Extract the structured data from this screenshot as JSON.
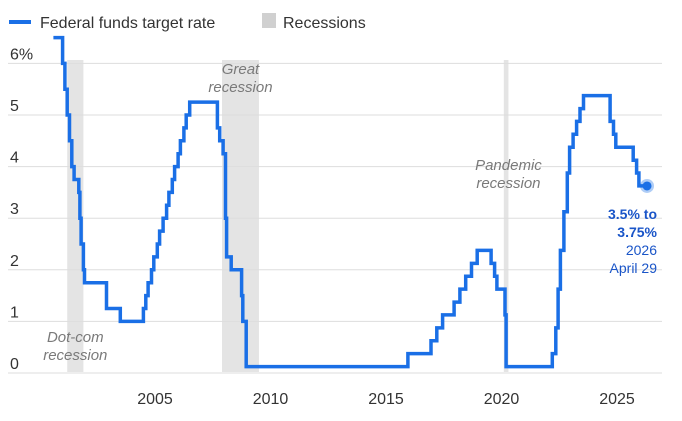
{
  "legend": {
    "series_label": "Federal funds target rate",
    "recession_label": "Recessions"
  },
  "colors": {
    "line": "#1a6fe6",
    "recession": "#e4e4e4",
    "grid": "#dddddd",
    "endpoint": "#1a55c8"
  },
  "chart_data": {
    "type": "line",
    "x_ticks": [
      "2005",
      "2010",
      "2015",
      "2020",
      "2025"
    ],
    "y_ticks": [
      "6%",
      "5",
      "4",
      "3",
      "2",
      "1",
      "0"
    ],
    "xlim": [
      2000.0,
      2026.9
    ],
    "ylim": [
      -0.1,
      6.5
    ],
    "grid": "horizontal",
    "legend_position": "top-left",
    "recessions": [
      {
        "label": "Dot-com\nrecession",
        "start": 2001.2,
        "end": 2001.9
      },
      {
        "label": "Great\nrecession",
        "start": 2007.9,
        "end": 2009.5
      },
      {
        "label": "Pandemic\nrecession",
        "start": 2020.1,
        "end": 2020.3
      }
    ],
    "series": [
      {
        "name": "Federal funds target rate",
        "points": [
          [
            2000.6,
            6.5
          ],
          [
            2001.0,
            6.5
          ],
          [
            2001.0,
            6.0
          ],
          [
            2001.1,
            6.0
          ],
          [
            2001.1,
            5.5
          ],
          [
            2001.2,
            5.5
          ],
          [
            2001.2,
            5.0
          ],
          [
            2001.3,
            5.0
          ],
          [
            2001.3,
            4.5
          ],
          [
            2001.4,
            4.5
          ],
          [
            2001.4,
            4.0
          ],
          [
            2001.5,
            4.0
          ],
          [
            2001.5,
            3.75
          ],
          [
            2001.7,
            3.75
          ],
          [
            2001.7,
            3.5
          ],
          [
            2001.75,
            3.5
          ],
          [
            2001.75,
            3.0
          ],
          [
            2001.8,
            3.0
          ],
          [
            2001.8,
            2.5
          ],
          [
            2001.9,
            2.5
          ],
          [
            2001.9,
            2.0
          ],
          [
            2001.95,
            2.0
          ],
          [
            2001.95,
            1.75
          ],
          [
            2002.9,
            1.75
          ],
          [
            2002.9,
            1.25
          ],
          [
            2003.5,
            1.25
          ],
          [
            2003.5,
            1.0
          ],
          [
            2004.5,
            1.0
          ],
          [
            2004.5,
            1.25
          ],
          [
            2004.6,
            1.25
          ],
          [
            2004.6,
            1.5
          ],
          [
            2004.7,
            1.5
          ],
          [
            2004.7,
            1.75
          ],
          [
            2004.85,
            1.75
          ],
          [
            2004.85,
            2.0
          ],
          [
            2004.95,
            2.0
          ],
          [
            2004.95,
            2.25
          ],
          [
            2005.1,
            2.25
          ],
          [
            2005.1,
            2.5
          ],
          [
            2005.2,
            2.5
          ],
          [
            2005.2,
            2.75
          ],
          [
            2005.35,
            2.75
          ],
          [
            2005.35,
            3.0
          ],
          [
            2005.5,
            3.0
          ],
          [
            2005.5,
            3.25
          ],
          [
            2005.6,
            3.25
          ],
          [
            2005.6,
            3.5
          ],
          [
            2005.75,
            3.5
          ],
          [
            2005.75,
            3.75
          ],
          [
            2005.85,
            3.75
          ],
          [
            2005.85,
            4.0
          ],
          [
            2006.0,
            4.0
          ],
          [
            2006.0,
            4.25
          ],
          [
            2006.1,
            4.25
          ],
          [
            2006.1,
            4.5
          ],
          [
            2006.25,
            4.5
          ],
          [
            2006.25,
            4.75
          ],
          [
            2006.35,
            4.75
          ],
          [
            2006.35,
            5.0
          ],
          [
            2006.5,
            5.0
          ],
          [
            2006.5,
            5.25
          ],
          [
            2007.7,
            5.25
          ],
          [
            2007.7,
            4.75
          ],
          [
            2007.8,
            4.75
          ],
          [
            2007.8,
            4.5
          ],
          [
            2007.95,
            4.5
          ],
          [
            2007.95,
            4.25
          ],
          [
            2008.05,
            4.25
          ],
          [
            2008.05,
            3.0
          ],
          [
            2008.1,
            3.0
          ],
          [
            2008.1,
            2.25
          ],
          [
            2008.3,
            2.25
          ],
          [
            2008.3,
            2.0
          ],
          [
            2008.75,
            2.0
          ],
          [
            2008.75,
            1.5
          ],
          [
            2008.8,
            1.5
          ],
          [
            2008.8,
            1.0
          ],
          [
            2008.95,
            1.0
          ],
          [
            2008.95,
            0.125
          ],
          [
            2015.95,
            0.125
          ],
          [
            2015.95,
            0.375
          ],
          [
            2016.95,
            0.375
          ],
          [
            2016.95,
            0.625
          ],
          [
            2017.2,
            0.625
          ],
          [
            2017.2,
            0.875
          ],
          [
            2017.45,
            0.875
          ],
          [
            2017.45,
            1.125
          ],
          [
            2017.95,
            1.125
          ],
          [
            2017.95,
            1.375
          ],
          [
            2018.2,
            1.375
          ],
          [
            2018.2,
            1.625
          ],
          [
            2018.45,
            1.625
          ],
          [
            2018.45,
            1.875
          ],
          [
            2018.7,
            1.875
          ],
          [
            2018.7,
            2.125
          ],
          [
            2018.95,
            2.125
          ],
          [
            2018.95,
            2.375
          ],
          [
            2019.55,
            2.375
          ],
          [
            2019.55,
            2.125
          ],
          [
            2019.7,
            2.125
          ],
          [
            2019.7,
            1.875
          ],
          [
            2019.8,
            1.875
          ],
          [
            2019.8,
            1.625
          ],
          [
            2020.15,
            1.625
          ],
          [
            2020.15,
            1.125
          ],
          [
            2020.2,
            1.125
          ],
          [
            2020.2,
            0.125
          ],
          [
            2022.2,
            0.125
          ],
          [
            2022.2,
            0.375
          ],
          [
            2022.35,
            0.375
          ],
          [
            2022.35,
            0.875
          ],
          [
            2022.45,
            0.875
          ],
          [
            2022.45,
            1.625
          ],
          [
            2022.55,
            1.625
          ],
          [
            2022.55,
            2.375
          ],
          [
            2022.7,
            2.375
          ],
          [
            2022.7,
            3.125
          ],
          [
            2022.85,
            3.125
          ],
          [
            2022.85,
            3.875
          ],
          [
            2022.95,
            3.875
          ],
          [
            2022.95,
            4.375
          ],
          [
            2023.1,
            4.375
          ],
          [
            2023.1,
            4.625
          ],
          [
            2023.25,
            4.625
          ],
          [
            2023.25,
            4.875
          ],
          [
            2023.4,
            4.875
          ],
          [
            2023.4,
            5.125
          ],
          [
            2023.55,
            5.125
          ],
          [
            2023.55,
            5.375
          ],
          [
            2024.7,
            5.375
          ],
          [
            2024.7,
            4.875
          ],
          [
            2024.85,
            4.875
          ],
          [
            2024.85,
            4.625
          ],
          [
            2024.95,
            4.625
          ],
          [
            2024.95,
            4.375
          ],
          [
            2025.7,
            4.375
          ],
          [
            2025.7,
            4.125
          ],
          [
            2025.85,
            4.125
          ],
          [
            2025.85,
            3.875
          ],
          [
            2025.95,
            3.875
          ],
          [
            2025.95,
            3.625
          ],
          [
            2026.3,
            3.625
          ]
        ]
      }
    ],
    "endpoint": {
      "x": 2026.3,
      "y": 3.625,
      "value_label_line1": "3.5% to",
      "value_label_line2": "3.75%",
      "year_label": "2026",
      "date_label": "April 29"
    }
  }
}
